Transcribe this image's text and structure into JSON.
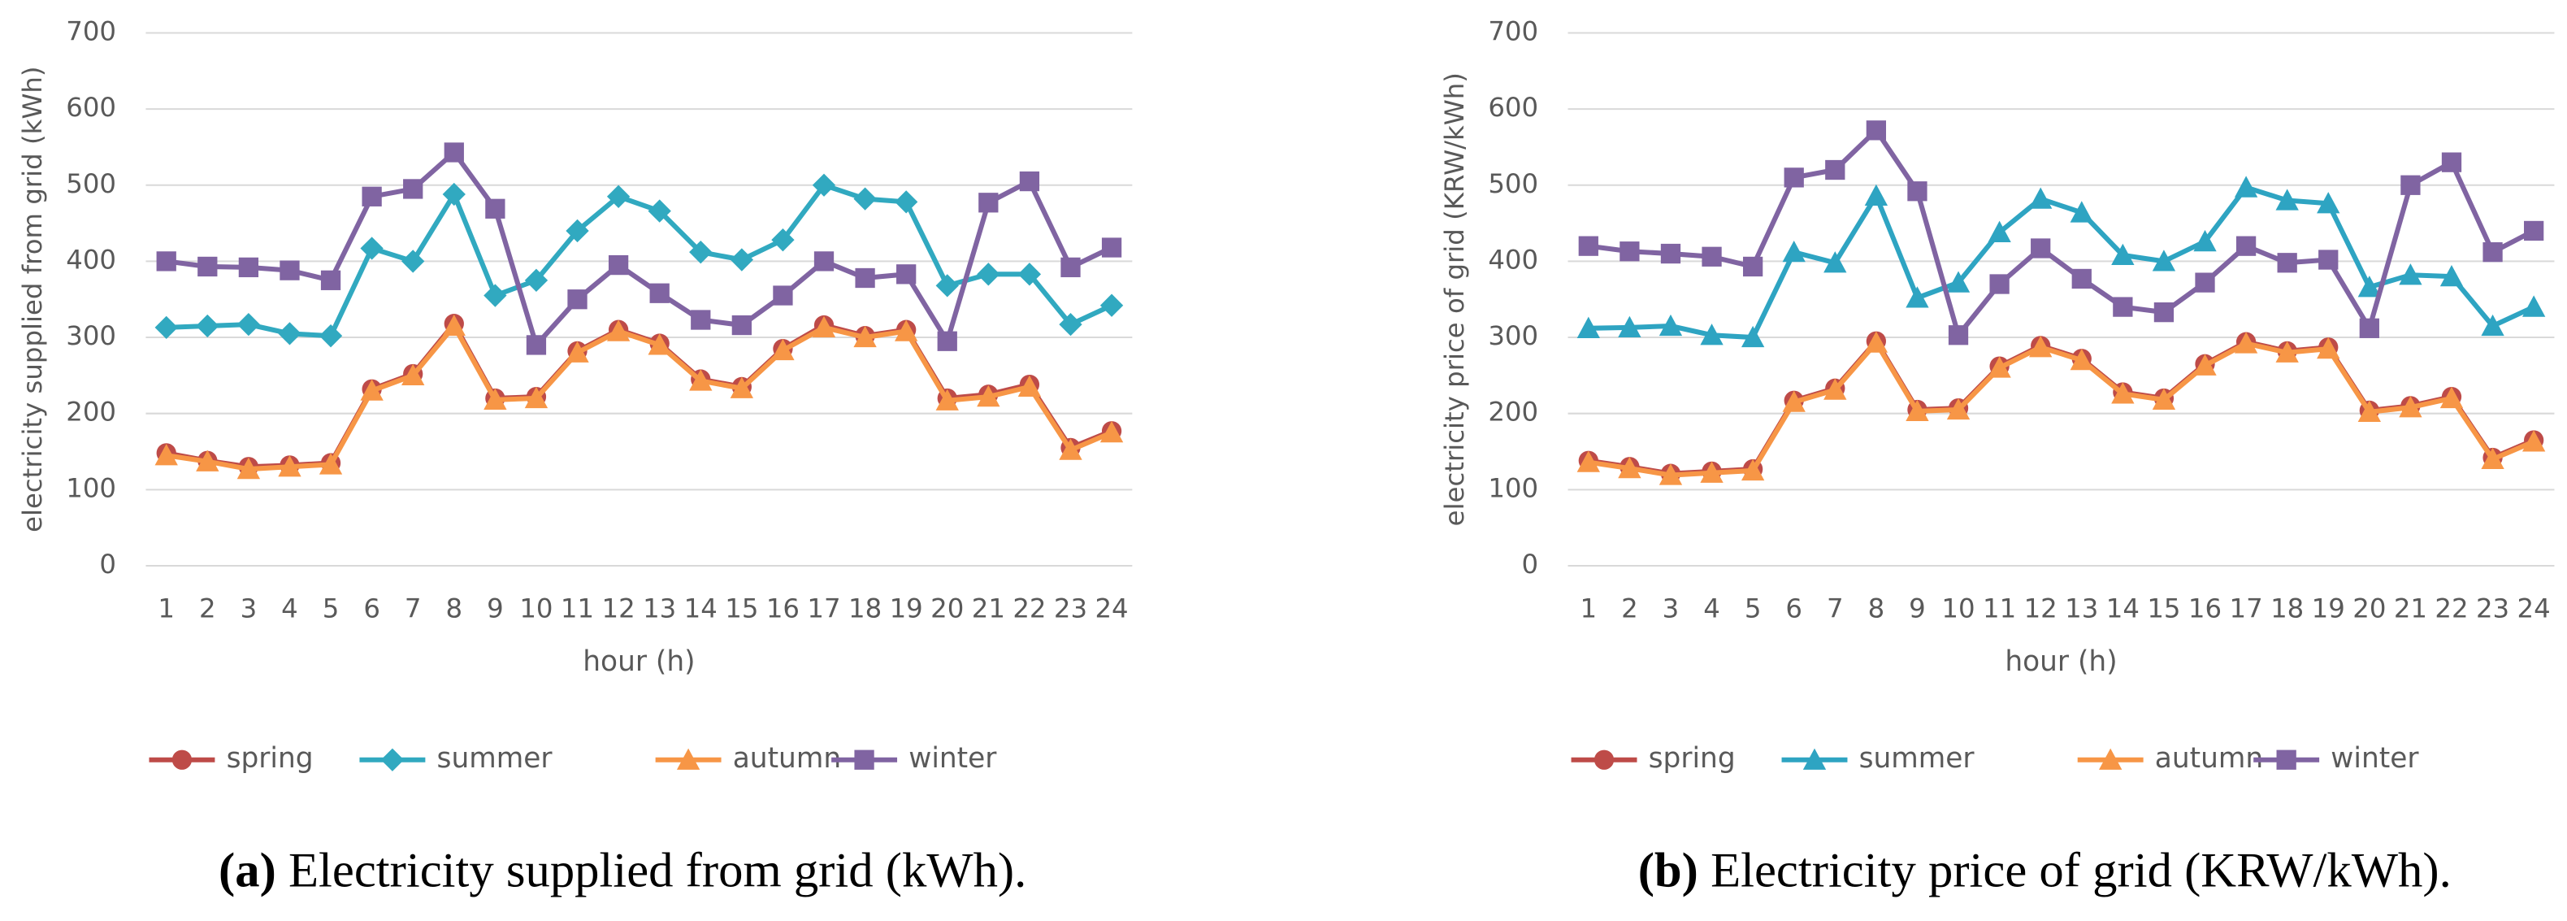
{
  "chart_data": [
    {
      "type": "line",
      "caption_label": "(a)",
      "caption": "Electricity supplied from grid (kWh).",
      "x_label": "hour (h)",
      "y_label": "electricity supplied from grid (kWh)",
      "categories": [
        "1",
        "2",
        "3",
        "4",
        "5",
        "6",
        "7",
        "8",
        "9",
        "10",
        "11",
        "12",
        "13",
        "14",
        "15",
        "16",
        "17",
        "18",
        "19",
        "20",
        "21",
        "22",
        "23",
        "24"
      ],
      "ylim": [
        0,
        700
      ],
      "yticks": [
        0,
        100,
        200,
        300,
        400,
        500,
        600,
        700
      ],
      "grid": true,
      "legend": "bottom",
      "series": [
        {
          "name": "spring",
          "color": "#be4b48",
          "marker": "circle",
          "values": [
            148,
            138,
            130,
            132,
            135,
            232,
            252,
            318,
            220,
            222,
            282,
            310,
            292,
            245,
            235,
            285,
            316,
            302,
            310,
            220,
            225,
            238,
            155,
            177
          ]
        },
        {
          "name": "summer",
          "color": "#31a9c0",
          "marker": "diamond",
          "values": [
            313,
            315,
            317,
            305,
            302,
            417,
            400,
            488,
            355,
            375,
            440,
            485,
            466,
            412,
            402,
            428,
            500,
            482,
            478,
            368,
            383,
            383,
            317,
            342
          ]
        },
        {
          "name": "autumn",
          "color": "#f79646",
          "marker": "triangle",
          "values": [
            145,
            137,
            127,
            130,
            133,
            230,
            250,
            315,
            218,
            220,
            280,
            308,
            290,
            243,
            233,
            283,
            313,
            300,
            308,
            217,
            222,
            235,
            152,
            175
          ]
        },
        {
          "name": "winter",
          "color": "#8064a2",
          "marker": "square",
          "values": [
            400,
            393,
            392,
            388,
            375,
            485,
            495,
            543,
            469,
            290,
            350,
            395,
            358,
            323,
            316,
            355,
            400,
            378,
            383,
            295,
            477,
            505,
            392,
            418
          ]
        }
      ]
    },
    {
      "type": "line",
      "caption_label": "(b)",
      "caption": "Electricity price of grid (KRW/kWh).",
      "x_label": "hour (h)",
      "y_label": "electricity price of grid (KRW/kWh)",
      "categories": [
        "1",
        "2",
        "3",
        "4",
        "5",
        "6",
        "7",
        "8",
        "9",
        "10",
        "11",
        "12",
        "13",
        "14",
        "15",
        "16",
        "17",
        "18",
        "19",
        "20",
        "21",
        "22",
        "23",
        "24"
      ],
      "ylim": [
        0,
        700
      ],
      "yticks": [
        0,
        100,
        200,
        300,
        400,
        500,
        600,
        700
      ],
      "grid": true,
      "legend": "bottom",
      "series": [
        {
          "name": "spring",
          "color": "#be4b48",
          "marker": "circle",
          "values": [
            138,
            130,
            121,
            124,
            127,
            217,
            233,
            295,
            205,
            207,
            262,
            289,
            272,
            228,
            220,
            265,
            294,
            282,
            287,
            204,
            210,
            222,
            142,
            165
          ]
        },
        {
          "name": "summer",
          "color": "#2ea4c2",
          "marker": "triangle",
          "values": [
            312,
            313,
            315,
            303,
            300,
            412,
            398,
            486,
            352,
            372,
            438,
            482,
            464,
            408,
            400,
            426,
            497,
            480,
            476,
            366,
            382,
            380,
            315,
            340
          ]
        },
        {
          "name": "autumn",
          "color": "#f79646",
          "marker": "triangle",
          "values": [
            136,
            128,
            119,
            122,
            125,
            215,
            231,
            293,
            203,
            205,
            260,
            287,
            270,
            226,
            218,
            263,
            292,
            280,
            285,
            202,
            208,
            220,
            140,
            163
          ]
        },
        {
          "name": "winter",
          "color": "#8064a2",
          "marker": "square",
          "values": [
            420,
            413,
            410,
            406,
            393,
            510,
            520,
            572,
            492,
            303,
            370,
            417,
            377,
            340,
            333,
            372,
            420,
            398,
            402,
            312,
            500,
            530,
            412,
            440
          ]
        }
      ]
    }
  ]
}
